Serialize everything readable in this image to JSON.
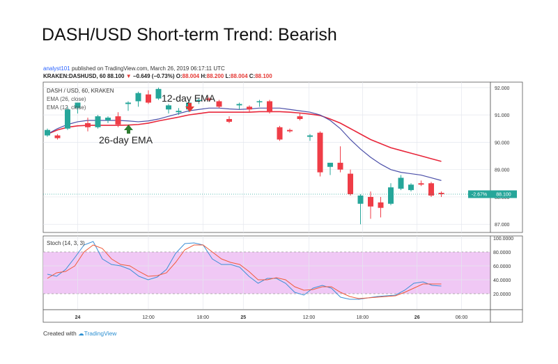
{
  "title": "DASH/USD Short-term Trend: Bearish",
  "published": {
    "user": "analyst101",
    "text": "published on TradingView.com, March 26, 2019 06:17:11 UTC"
  },
  "ohlc_line": {
    "symbol": "KRAKEN:DASHUSD, 60",
    "price": "88.100",
    "change": "−0.649 (−0.73%)",
    "O": "88.004",
    "H": "88.200",
    "L": "88.004",
    "C": "88.100"
  },
  "legend": {
    "symbol": "DASH / USD, 60, KRAKEN",
    "ema26": "EMA (26, close)",
    "ema12": "EMA (12, close)"
  },
  "annotations": {
    "ema12": "12-day EMA",
    "ema26": "26-day EMA"
  },
  "price_tag": {
    "change": "-2.67%",
    "price": "88.100"
  },
  "stoch_label": "Stoch (14, 3, 3)",
  "footer": {
    "created": "Created with",
    "brand": "TradingView"
  },
  "colors": {
    "up": "#26a69a",
    "down": "#ef3d47",
    "ema26": "#e8263a",
    "ema12": "#4b4fa8",
    "stoch_k": "#3d8fd6",
    "stoch_d": "#f15a3a",
    "stoch_band": "#f0c8f5",
    "arrow": "#2e7d32"
  },
  "chart_data": [
    {
      "type": "candlestick",
      "ylim": [
        86.7,
        92.2
      ],
      "yticks": [
        "92.000",
        "91.000",
        "90.000",
        "89.000",
        "88.000",
        "87.000"
      ],
      "xticks": [
        "24",
        "12:00",
        "18:00",
        "25",
        "12:00",
        "18:00",
        "26",
        "06:00"
      ],
      "candles": [
        {
          "o": 90.25,
          "h": 90.5,
          "l": 90.2,
          "c": 90.45
        },
        {
          "o": 90.25,
          "h": 90.3,
          "l": 90.1,
          "c": 90.15
        },
        {
          "o": 90.5,
          "h": 91.3,
          "l": 90.45,
          "c": 91.2
        },
        {
          "o": 91.25,
          "h": 91.45,
          "l": 91.05,
          "c": 91.45
        },
        {
          "o": 90.7,
          "h": 90.9,
          "l": 90.4,
          "c": 90.55
        },
        {
          "o": 90.55,
          "h": 91.0,
          "l": 90.5,
          "c": 90.95
        },
        {
          "o": 90.8,
          "h": 90.95,
          "l": 90.7,
          "c": 90.9
        },
        {
          "o": 90.95,
          "h": 91.1,
          "l": 90.55,
          "c": 90.65
        },
        {
          "o": 91.4,
          "h": 91.5,
          "l": 91.15,
          "c": 91.45
        },
        {
          "o": 91.5,
          "h": 91.85,
          "l": 91.3,
          "c": 91.8
        },
        {
          "o": 91.75,
          "h": 91.9,
          "l": 91.4,
          "c": 91.45
        },
        {
          "o": 91.6,
          "h": 92.0,
          "l": 91.55,
          "c": 91.95
        },
        {
          "o": 91.2,
          "h": 91.4,
          "l": 91.05,
          "c": 91.35
        },
        {
          "o": 91.1,
          "h": 91.25,
          "l": 91.0,
          "c": 91.15
        },
        {
          "o": 91.2,
          "h": 91.5,
          "l": 91.1,
          "c": 91.45
        },
        {
          "o": 91.55,
          "h": 91.6,
          "l": 91.4,
          "c": 91.55
        },
        {
          "o": 91.6,
          "h": 91.65,
          "l": 91.5,
          "c": 91.55
        },
        {
          "o": 91.5,
          "h": 91.55,
          "l": 91.25,
          "c": 91.3
        },
        {
          "o": 90.85,
          "h": 90.95,
          "l": 90.7,
          "c": 90.75
        },
        {
          "o": 91.35,
          "h": 91.45,
          "l": 91.2,
          "c": 91.4
        },
        {
          "o": 91.3,
          "h": 91.35,
          "l": 91.1,
          "c": 91.2
        },
        {
          "o": 91.5,
          "h": 91.55,
          "l": 91.3,
          "c": 91.5
        },
        {
          "o": 91.5,
          "h": 91.55,
          "l": 91.05,
          "c": 91.1
        },
        {
          "o": 90.55,
          "h": 90.6,
          "l": 90.05,
          "c": 90.1
        },
        {
          "o": 90.45,
          "h": 90.5,
          "l": 90.35,
          "c": 90.4
        },
        {
          "o": 90.95,
          "h": 91.05,
          "l": 90.8,
          "c": 90.85
        },
        {
          "o": 90.2,
          "h": 90.3,
          "l": 90.05,
          "c": 90.25
        },
        {
          "o": 90.35,
          "h": 90.4,
          "l": 88.75,
          "c": 88.9
        },
        {
          "o": 89.1,
          "h": 89.2,
          "l": 88.8,
          "c": 89.25
        },
        {
          "o": 89.25,
          "h": 89.85,
          "l": 88.9,
          "c": 89.0
        },
        {
          "o": 88.85,
          "h": 89.0,
          "l": 88.05,
          "c": 88.1
        },
        {
          "o": 87.75,
          "h": 88.1,
          "l": 87.0,
          "c": 88.05
        },
        {
          "o": 88.0,
          "h": 88.2,
          "l": 87.2,
          "c": 87.65
        },
        {
          "o": 87.8,
          "h": 88.0,
          "l": 87.25,
          "c": 87.6
        },
        {
          "o": 87.75,
          "h": 88.5,
          "l": 87.7,
          "c": 88.35
        },
        {
          "o": 88.3,
          "h": 88.8,
          "l": 88.25,
          "c": 88.7
        },
        {
          "o": 88.25,
          "h": 88.5,
          "l": 88.2,
          "c": 88.45
        },
        {
          "o": 88.5,
          "h": 88.6,
          "l": 88.4,
          "c": 88.45
        },
        {
          "o": 88.5,
          "h": 88.55,
          "l": 88.0,
          "c": 88.05
        },
        {
          "o": 88.15,
          "h": 88.2,
          "l": 88.0,
          "c": 88.1
        }
      ],
      "ema12": [
        90.3,
        90.5,
        90.65,
        90.75,
        90.8,
        90.8,
        90.8,
        90.8,
        90.78,
        90.75,
        90.78,
        90.85,
        90.95,
        91.05,
        91.15,
        91.2,
        91.25,
        91.25,
        91.22,
        91.2,
        91.22,
        91.25,
        91.25,
        91.25,
        91.2,
        91.15,
        91.1,
        91.0,
        90.8,
        90.5,
        90.1,
        89.75,
        89.45,
        89.2,
        89.0,
        88.9,
        88.85,
        88.8,
        88.7,
        88.6
      ],
      "ema26": [
        90.3,
        90.45,
        90.55,
        90.6,
        90.62,
        90.62,
        90.62,
        90.62,
        90.63,
        90.65,
        90.7,
        90.78,
        90.85,
        90.92,
        91.0,
        91.05,
        91.1,
        91.1,
        91.1,
        91.1,
        91.1,
        91.12,
        91.12,
        91.12,
        91.1,
        91.07,
        91.03,
        90.98,
        90.85,
        90.7,
        90.5,
        90.3,
        90.1,
        89.95,
        89.8,
        89.7,
        89.6,
        89.5,
        89.4,
        89.3
      ],
      "last_price": 88.1,
      "last_change": "-2.67%"
    },
    {
      "type": "line",
      "title": "Stoch (14, 3, 3)",
      "ylim": [
        0,
        100
      ],
      "yticks": [
        "100.0000",
        "80.0000",
        "60.0000",
        "40.0000",
        "20.0000"
      ],
      "band": [
        20,
        80
      ],
      "series": [
        {
          "values": [
            48,
            45,
            55,
            72,
            90,
            95,
            70,
            62,
            60,
            55,
            45,
            40,
            44,
            55,
            78,
            92,
            93,
            90,
            70,
            62,
            62,
            58,
            45,
            35,
            42,
            42,
            35,
            22,
            18,
            28,
            32,
            28,
            15,
            12,
            12,
            14,
            16,
            17,
            18,
            25,
            35,
            37,
            32,
            31
          ]
        },
        {
          "values": [
            42,
            50,
            52,
            60,
            80,
            90,
            85,
            70,
            62,
            60,
            52,
            45,
            46,
            50,
            65,
            83,
            90,
            90,
            80,
            70,
            65,
            62,
            52,
            40,
            40,
            43,
            40,
            30,
            25,
            26,
            30,
            30,
            22,
            16,
            13,
            14,
            15,
            16,
            17,
            22,
            28,
            34,
            34,
            34
          ]
        }
      ]
    }
  ]
}
